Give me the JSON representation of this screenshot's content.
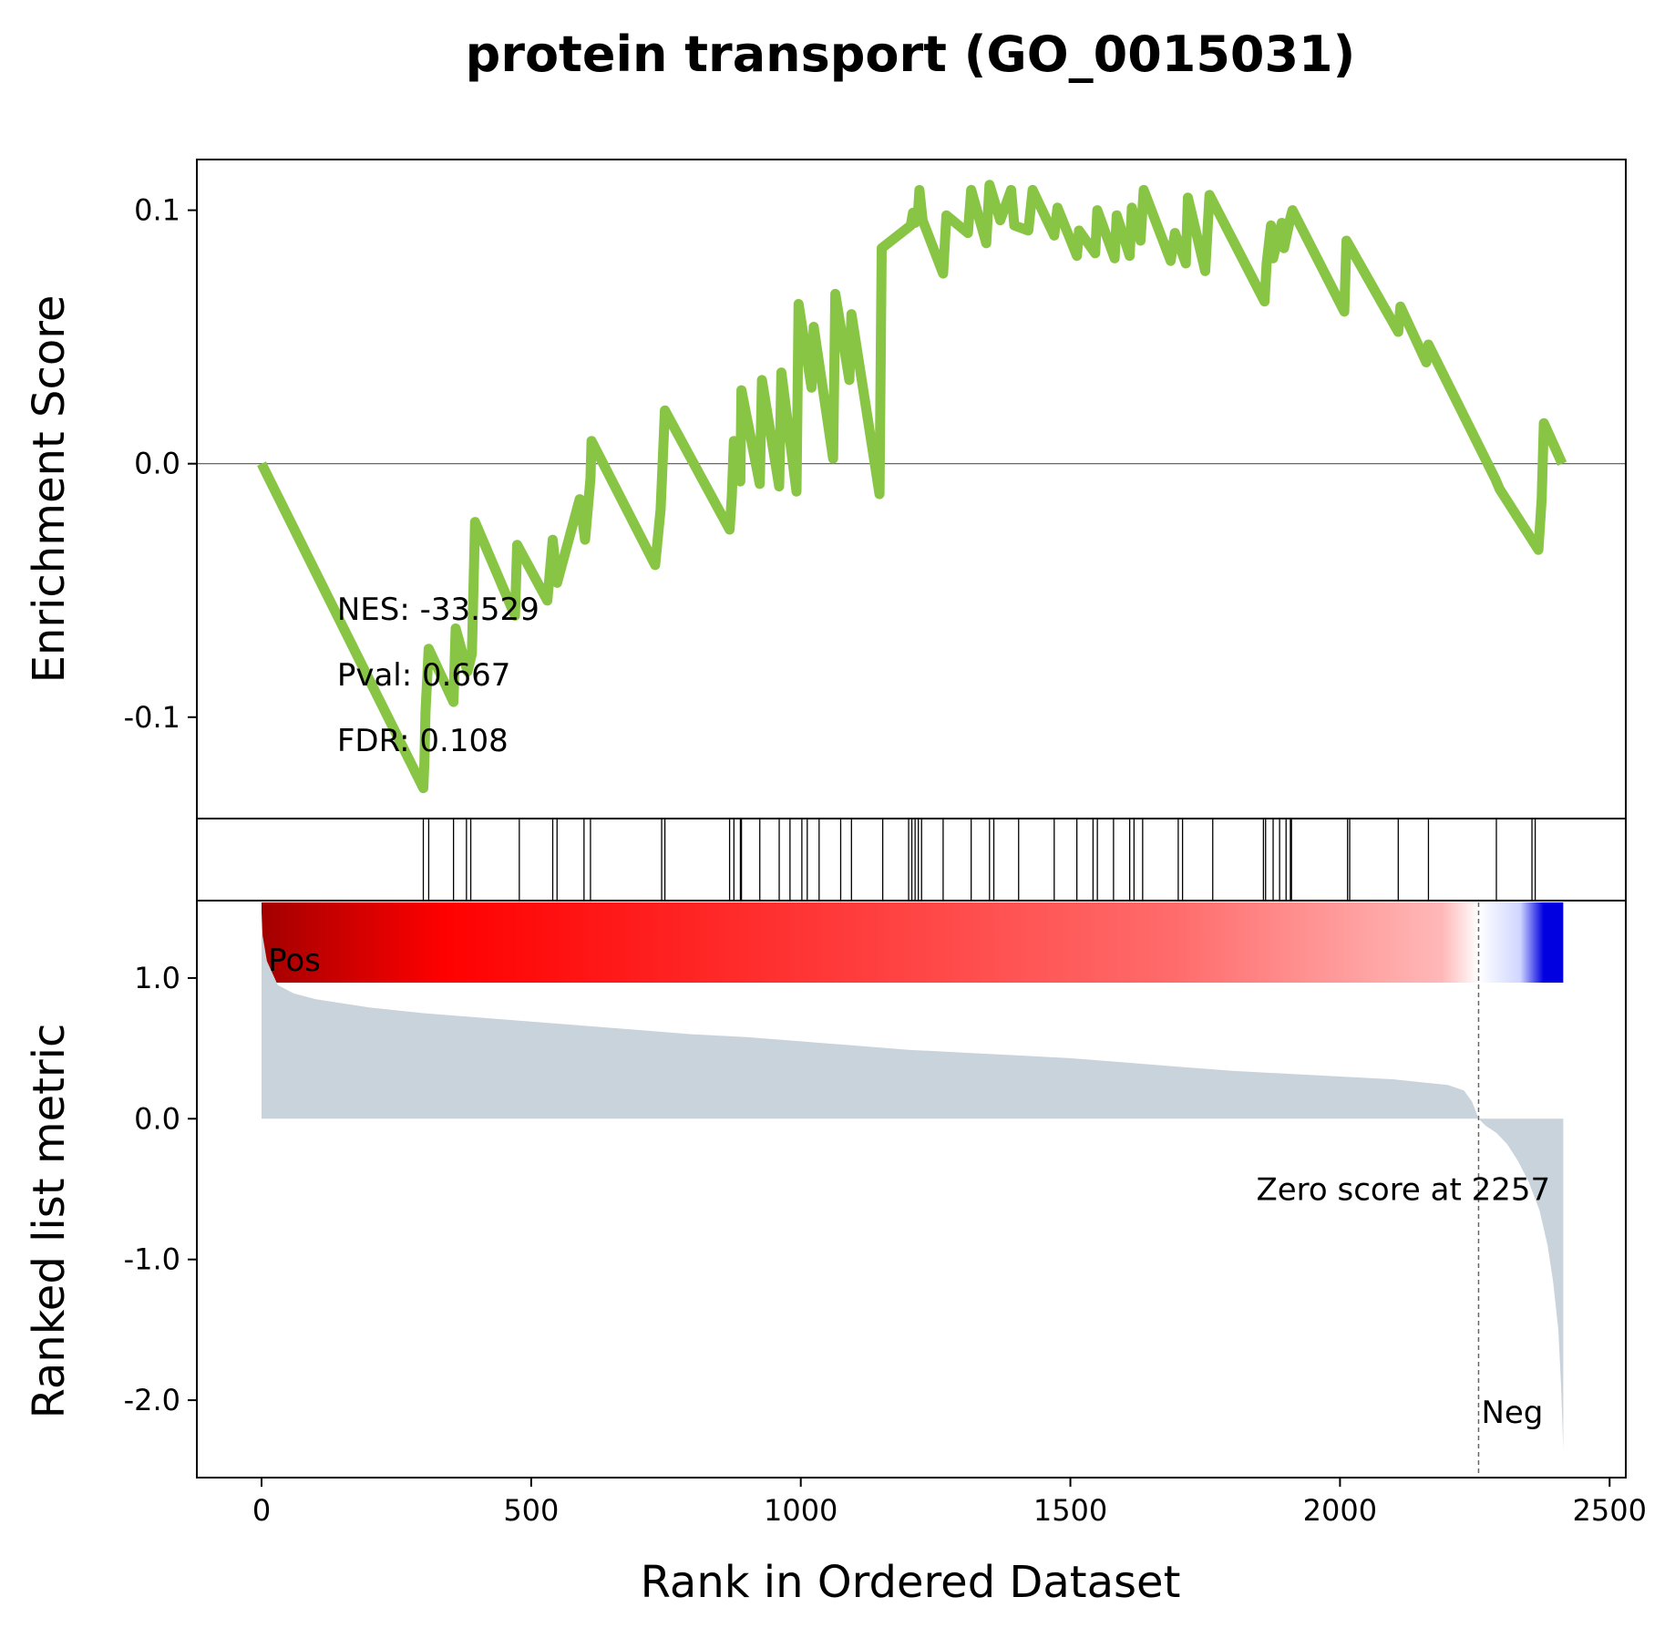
{
  "chart_data": {
    "type": "line",
    "title": "protein transport (GO_0015031)",
    "xlabel": "Rank in Ordered Dataset",
    "x_ticks": [
      "0",
      "500",
      "1000",
      "1500",
      "2000",
      "2500"
    ],
    "xlim": [
      -120,
      2530
    ],
    "panels": {
      "enrichment": {
        "ylabel": "Enrichment Score",
        "ylim": [
          -0.14,
          0.12
        ],
        "y_ticks": [
          "0.1",
          "0.0",
          "-0.1"
        ],
        "line_color": "#88c544",
        "zero_line": true,
        "annotations": [
          "NES: -33.529",
          "Pval: 0.667",
          "FDR: 0.108"
        ],
        "x": [
          0,
          300,
          302,
          304,
          310,
          356,
          360,
          382,
          390,
          396,
          396,
          470,
          474,
          530,
          540,
          548,
          590,
          600,
          610,
          612,
          730,
          740,
          744,
          748,
          868,
          872,
          876,
          888,
          890,
          924,
          928,
          960,
          964,
          992,
          996,
          1020,
          1024,
          1060,
          1064,
          1090,
          1094,
          1146,
          1150,
          1204,
          1208,
          1212,
          1218,
          1220,
          1226,
          1264,
          1270,
          1310,
          1316,
          1344,
          1350,
          1370,
          1390,
          1396,
          1422,
          1430,
          1470,
          1476,
          1512,
          1516,
          1546,
          1550,
          1582,
          1586,
          1610,
          1614,
          1630,
          1636,
          1686,
          1694,
          1714,
          1718,
          1750,
          1758,
          1860,
          1864,
          1872,
          1876,
          1892,
          1896,
          1908,
          1912,
          2008,
          2012,
          2108,
          2112,
          2160,
          2164,
          2288,
          2296,
          2368,
          2374,
          2378,
          2412
        ],
        "values": [
          0.0,
          -0.128,
          -0.118,
          -0.098,
          -0.073,
          -0.094,
          -0.065,
          -0.082,
          -0.075,
          -0.023,
          -0.023,
          -0.06,
          -0.032,
          -0.054,
          -0.03,
          -0.047,
          -0.014,
          -0.03,
          -0.006,
          0.009,
          -0.04,
          -0.018,
          0.001,
          0.021,
          -0.026,
          -0.013,
          0.009,
          -0.007,
          0.029,
          -0.008,
          0.033,
          -0.009,
          0.036,
          -0.011,
          0.063,
          0.03,
          0.054,
          0.002,
          0.067,
          0.033,
          0.059,
          -0.012,
          0.085,
          0.094,
          0.099,
          0.095,
          0.101,
          0.108,
          0.096,
          0.075,
          0.098,
          0.091,
          0.108,
          0.087,
          0.11,
          0.096,
          0.108,
          0.094,
          0.092,
          0.108,
          0.09,
          0.101,
          0.082,
          0.092,
          0.083,
          0.1,
          0.081,
          0.098,
          0.082,
          0.101,
          0.088,
          0.108,
          0.08,
          0.091,
          0.079,
          0.105,
          0.076,
          0.106,
          0.064,
          0.079,
          0.094,
          0.081,
          0.095,
          0.085,
          0.097,
          0.1,
          0.06,
          0.088,
          0.052,
          0.062,
          0.04,
          0.047,
          -0.006,
          -0.01,
          -0.034,
          -0.014,
          0.016,
          0.0
        ]
      },
      "hits": {
        "x": [
          300,
          310,
          356,
          380,
          388,
          478,
          540,
          548,
          598,
          610,
          742,
          748,
          868,
          876,
          888,
          890,
          924,
          960,
          980,
          1002,
          1012,
          1034,
          1074,
          1094,
          1152,
          1200,
          1206,
          1212,
          1218,
          1224,
          1264,
          1316,
          1350,
          1358,
          1404,
          1470,
          1512,
          1542,
          1550,
          1580,
          1610,
          1618,
          1634,
          1700,
          1708,
          1764,
          1858,
          1862,
          1876,
          1888,
          1900,
          1910,
          1908,
          2014,
          2018,
          2108,
          2164,
          2290,
          2356,
          2362
        ]
      },
      "ranked": {
        "ylabel": "Ranked list metric",
        "ylim": [
          -2.55,
          1.55
        ],
        "y_ticks": [
          "1.0",
          "0.0",
          "-1.0",
          "-2.0"
        ],
        "fill_color": "#c9d3dc",
        "x": [
          0,
          2,
          10,
          30,
          60,
          100,
          150,
          200,
          300,
          400,
          500,
          600,
          700,
          800,
          900,
          1000,
          1100,
          1200,
          1300,
          1400,
          1500,
          1600,
          1700,
          1800,
          1900,
          2000,
          2100,
          2150,
          2200,
          2230,
          2245,
          2257,
          2270,
          2290,
          2310,
          2330,
          2350,
          2370,
          2385,
          2395,
          2405,
          2410,
          2414
        ],
        "values": [
          1.47,
          1.3,
          1.12,
          0.95,
          0.89,
          0.85,
          0.82,
          0.79,
          0.75,
          0.72,
          0.69,
          0.66,
          0.63,
          0.6,
          0.58,
          0.55,
          0.52,
          0.49,
          0.47,
          0.45,
          0.43,
          0.4,
          0.37,
          0.34,
          0.32,
          0.3,
          0.28,
          0.26,
          0.24,
          0.2,
          0.12,
          0.0,
          -0.05,
          -0.1,
          -0.18,
          -0.3,
          -0.45,
          -0.65,
          -0.9,
          -1.15,
          -1.5,
          -1.9,
          -2.35
        ],
        "zero_score_rank": 2257,
        "zero_score_label": "Zero score at 2257",
        "pos_label": "Pos",
        "neg_label": "Neg",
        "pos_color": "#ff0000",
        "neg_color": "#0000ff"
      },
      "colorbar": {
        "x_start": 0,
        "x_end": 2414,
        "zero_at": 2257,
        "colors": [
          "#a30000",
          "#ff0000",
          "#ff9090",
          "#ffffff",
          "#0000e0"
        ]
      }
    }
  }
}
